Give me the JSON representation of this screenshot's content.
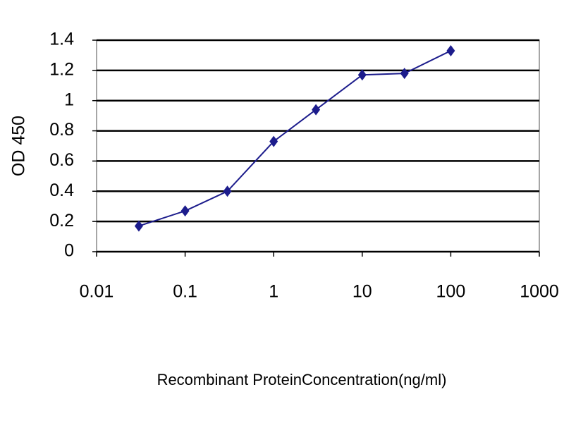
{
  "chart_data": {
    "type": "line",
    "x_label": "Recombinant ProteinConcentration(ng/ml)",
    "y_label": "OD 450",
    "x": [
      0.03,
      0.1,
      0.3,
      1,
      3,
      10,
      30,
      100
    ],
    "values": [
      0.17,
      0.27,
      0.4,
      0.73,
      0.94,
      1.17,
      1.18,
      1.33
    ],
    "color": "#1c1c8c",
    "marker": "diamond",
    "xscale": "log",
    "xlim": [
      0.01,
      1000
    ],
    "xticks": [
      0.01,
      0.1,
      1,
      10,
      100,
      1000
    ],
    "ylim": [
      0,
      1.4
    ],
    "yticks": [
      0,
      0.2,
      0.4,
      0.6,
      0.8,
      1,
      1.2,
      1.4
    ],
    "grid": true
  }
}
